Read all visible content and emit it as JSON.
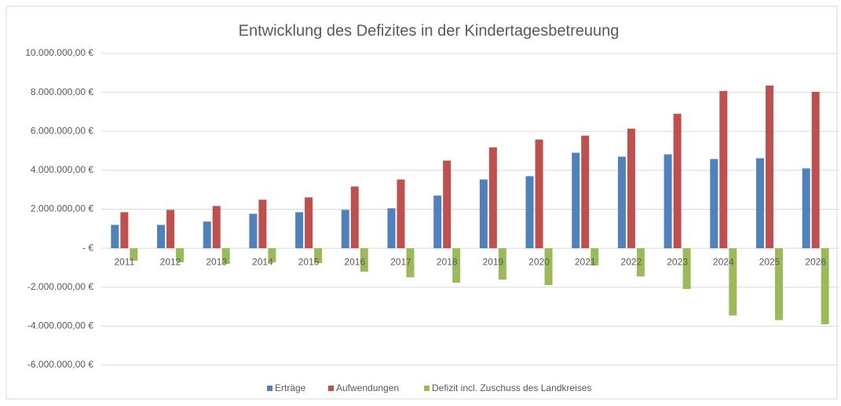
{
  "chart_data": {
    "type": "bar",
    "title": "Entwicklung des Defizites in der Kindertagesbetreuung",
    "categories": [
      "2011",
      "2012",
      "2013",
      "2014",
      "2015",
      "2016",
      "2017",
      "2018",
      "2019",
      "2020",
      "2021",
      "2022",
      "2023",
      "2024",
      "2025",
      "2026"
    ],
    "series": [
      {
        "name": "Erträge",
        "color": "#4f81bd",
        "values": [
          1200000,
          1200000,
          1370000,
          1770000,
          1850000,
          1970000,
          2050000,
          2700000,
          3530000,
          3700000,
          4900000,
          4700000,
          4820000,
          4580000,
          4620000,
          4100000
        ]
      },
      {
        "name": "Aufwendungen",
        "color": "#c0504d",
        "values": [
          1850000,
          1970000,
          2170000,
          2490000,
          2610000,
          3170000,
          3530000,
          4500000,
          5180000,
          5580000,
          5780000,
          6140000,
          6900000,
          8070000,
          8350000,
          8030000
        ]
      },
      {
        "name": "Defizit incl. Zuschuss des Landkreises",
        "color": "#9bbb59",
        "values": [
          -640000,
          -720000,
          -800000,
          -720000,
          -760000,
          -1200000,
          -1490000,
          -1770000,
          -1610000,
          -1890000,
          -880000,
          -1450000,
          -2090000,
          -3450000,
          -3690000,
          -3900000
        ]
      }
    ],
    "ylim": [
      -6000000,
      10000000
    ],
    "yticks": [
      {
        "value": 10000000,
        "label": "10.000.000,00 €"
      },
      {
        "value": 8000000,
        "label": "8.000.000,00 €"
      },
      {
        "value": 6000000,
        "label": "6.000.000,00 €"
      },
      {
        "value": 4000000,
        "label": "4.000.000,00 €"
      },
      {
        "value": 2000000,
        "label": "2.000.000,00 €"
      },
      {
        "value": 0,
        "label": "-   €"
      },
      {
        "value": -2000000,
        "label": "-2.000.000,00 €"
      },
      {
        "value": -4000000,
        "label": "-4.000.000,00 €"
      },
      {
        "value": -6000000,
        "label": "-6.000.000,00 €"
      }
    ],
    "grid": true,
    "legend": "bottom"
  }
}
